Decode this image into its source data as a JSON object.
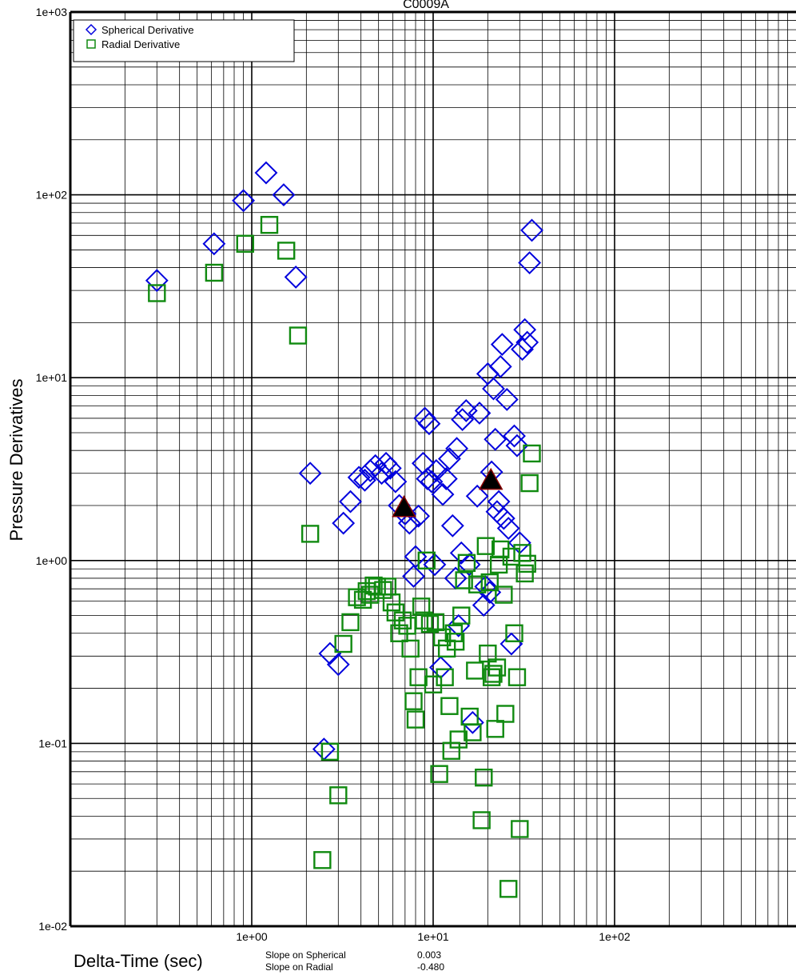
{
  "chart_data": {
    "type": "scatter",
    "title": "C0009A",
    "xlabel": "Delta-Time (sec)",
    "ylabel": "Pressure Derivatives",
    "x_scale": "log",
    "y_scale": "log",
    "xlim": [
      0.1,
      1000
    ],
    "ylim": [
      0.01,
      1000
    ],
    "grid": true,
    "legend_position": "top-left",
    "x_ticks": [
      "1e+00",
      "1e+01",
      "1e+02"
    ],
    "y_ticks": [
      "1e-02",
      "1e-01",
      "1e+00",
      "1e+01",
      "1e+02",
      "1e+03"
    ],
    "series": [
      {
        "name": "Spherical Derivative",
        "marker": "diamond",
        "color": "#0000dd",
        "points": [
          [
            0.3,
            34
          ],
          [
            0.62,
            54
          ],
          [
            0.9,
            93
          ],
          [
            1.2,
            132
          ],
          [
            1.5,
            100
          ],
          [
            1.75,
            35.5
          ],
          [
            2.1,
            3.0
          ],
          [
            2.5,
            0.093
          ],
          [
            2.7,
            0.31
          ],
          [
            3.0,
            0.27
          ],
          [
            3.2,
            1.6
          ],
          [
            3.5,
            2.1
          ],
          [
            3.9,
            2.85
          ],
          [
            4.2,
            2.75
          ],
          [
            4.5,
            3.1
          ],
          [
            4.8,
            3.3
          ],
          [
            5.2,
            3.0
          ],
          [
            5.5,
            3.4
          ],
          [
            5.8,
            3.2
          ],
          [
            6.2,
            2.7
          ],
          [
            6.5,
            2.0
          ],
          [
            7.0,
            1.8
          ],
          [
            7.4,
            1.6
          ],
          [
            7.8,
            0.82
          ],
          [
            8.0,
            1.05
          ],
          [
            8.3,
            1.75
          ],
          [
            8.8,
            3.4
          ],
          [
            9.0,
            6.0
          ],
          [
            9.5,
            5.6
          ],
          [
            9.3,
            2.8
          ],
          [
            9.8,
            2.7
          ],
          [
            10.2,
            0.95
          ],
          [
            10.4,
            3.1
          ],
          [
            11.0,
            0.26
          ],
          [
            11.3,
            2.3
          ],
          [
            11.8,
            2.8
          ],
          [
            12.3,
            3.6
          ],
          [
            12.8,
            1.55
          ],
          [
            13.3,
            0.8
          ],
          [
            13.8,
            0.44
          ],
          [
            13.5,
            4.1
          ],
          [
            14.3,
            1.1
          ],
          [
            14.5,
            5.9
          ],
          [
            15.2,
            6.6
          ],
          [
            15.8,
            0.95
          ],
          [
            16.5,
            0.13
          ],
          [
            17.5,
            2.25
          ],
          [
            18.0,
            6.4
          ],
          [
            19.0,
            0.57
          ],
          [
            19.5,
            0.72
          ],
          [
            20.0,
            10.5
          ],
          [
            20.5,
            0.67
          ],
          [
            21.0,
            3.05
          ],
          [
            21.5,
            8.7
          ],
          [
            22.0,
            4.6
          ],
          [
            22.5,
            1.85
          ],
          [
            23.0,
            2.1
          ],
          [
            23.5,
            11.5
          ],
          [
            24.0,
            15.2
          ],
          [
            24.5,
            1.7
          ],
          [
            25.5,
            7.6
          ],
          [
            26.0,
            1.5
          ],
          [
            27.0,
            0.35
          ],
          [
            28.0,
            4.8
          ],
          [
            29.0,
            4.25
          ],
          [
            30.0,
            1.25
          ],
          [
            31.0,
            14.3
          ],
          [
            32.0,
            18.3
          ],
          [
            33.0,
            15.6
          ],
          [
            34.0,
            42.5
          ],
          [
            35.0,
            64
          ]
        ]
      },
      {
        "name": "Radial Derivative",
        "marker": "square",
        "color": "#108a10",
        "points": [
          [
            0.3,
            29
          ],
          [
            0.62,
            37.5
          ],
          [
            0.92,
            54
          ],
          [
            1.25,
            68.5
          ],
          [
            1.55,
            49.5
          ],
          [
            1.8,
            17
          ],
          [
            2.1,
            1.4
          ],
          [
            2.45,
            0.023
          ],
          [
            2.7,
            0.09
          ],
          [
            3.0,
            0.052
          ],
          [
            3.2,
            0.35
          ],
          [
            3.5,
            0.46
          ],
          [
            3.8,
            0.63
          ],
          [
            4.1,
            0.61
          ],
          [
            4.3,
            0.68
          ],
          [
            4.5,
            0.65
          ],
          [
            4.7,
            0.73
          ],
          [
            4.9,
            0.72
          ],
          [
            5.3,
            0.69
          ],
          [
            5.6,
            0.72
          ],
          [
            5.9,
            0.59
          ],
          [
            6.2,
            0.52
          ],
          [
            6.5,
            0.4
          ],
          [
            6.8,
            0.47
          ],
          [
            7.2,
            0.44
          ],
          [
            7.5,
            0.33
          ],
          [
            7.8,
            0.17
          ],
          [
            8.0,
            0.135
          ],
          [
            8.3,
            0.23
          ],
          [
            8.6,
            0.56
          ],
          [
            8.9,
            0.47
          ],
          [
            9.2,
            1.0
          ],
          [
            9.6,
            0.45
          ],
          [
            10.0,
            0.21
          ],
          [
            10.3,
            0.46
          ],
          [
            10.8,
            0.068
          ],
          [
            11.2,
            0.38
          ],
          [
            11.6,
            0.23
          ],
          [
            11.9,
            0.33
          ],
          [
            12.3,
            0.16
          ],
          [
            12.6,
            0.091
          ],
          [
            13.0,
            0.4
          ],
          [
            13.3,
            0.36
          ],
          [
            13.8,
            0.105
          ],
          [
            14.3,
            0.5
          ],
          [
            14.8,
            0.78
          ],
          [
            15.3,
            0.97
          ],
          [
            15.9,
            0.14
          ],
          [
            16.5,
            0.115
          ],
          [
            17.0,
            0.25
          ],
          [
            17.5,
            0.74
          ],
          [
            18.5,
            0.038
          ],
          [
            19.0,
            0.065
          ],
          [
            19.5,
            1.2
          ],
          [
            20.0,
            0.31
          ],
          [
            20.5,
            0.76
          ],
          [
            21.0,
            0.23
          ],
          [
            21.5,
            0.24
          ],
          [
            22.0,
            0.12
          ],
          [
            22.5,
            0.26
          ],
          [
            23.0,
            0.95
          ],
          [
            23.5,
            1.15
          ],
          [
            24.5,
            0.65
          ],
          [
            25.0,
            0.145
          ],
          [
            26.0,
            0.016
          ],
          [
            27.0,
            1.05
          ],
          [
            28.0,
            0.4
          ],
          [
            29.0,
            0.23
          ],
          [
            30.0,
            0.034
          ],
          [
            31.0,
            1.1
          ],
          [
            32.0,
            0.85
          ],
          [
            33.0,
            0.96
          ],
          [
            34.0,
            2.65
          ],
          [
            35.0,
            3.85
          ]
        ]
      },
      {
        "name": "",
        "marker": "triangle",
        "color": "#000000",
        "edge_color": "#880000",
        "points": [
          [
            6.9,
            1.95
          ],
          [
            20.8,
            2.75
          ]
        ]
      }
    ],
    "annotations": [
      {
        "label": "Slope on Spherical",
        "value": "0.003"
      },
      {
        "label": "Slope on Radial",
        "value": "-0.480"
      }
    ]
  }
}
